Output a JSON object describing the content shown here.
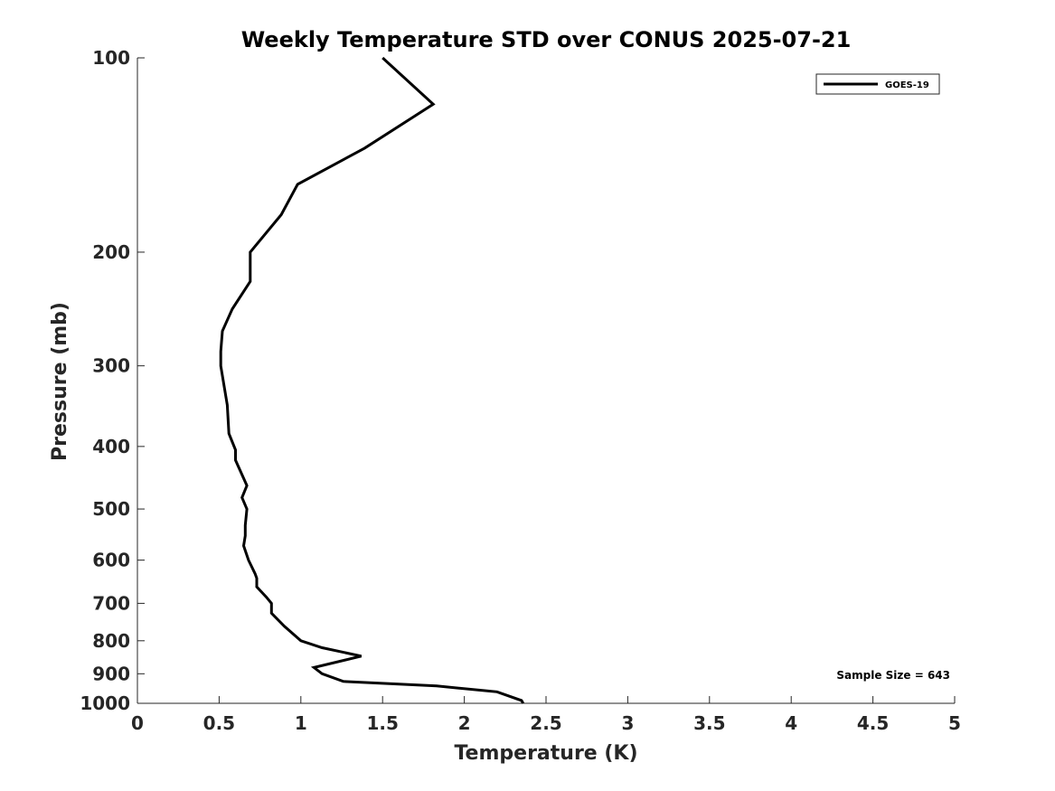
{
  "chart_data": {
    "type": "line",
    "title": "Weekly Temperature STD over CONUS 2025-07-21",
    "xlabel": "Temperature (K)",
    "ylabel": "Pressure (mb)",
    "xlim": [
      0,
      5
    ],
    "ylim": [
      100,
      1000
    ],
    "yscale": "log",
    "yreversed": true,
    "grid": false,
    "xticks": [
      0,
      0.5,
      1,
      1.5,
      2,
      2.5,
      3,
      3.5,
      4,
      4.5,
      5
    ],
    "xtick_labels": [
      "0",
      "0.5",
      "1",
      "1.5",
      "2",
      "2.5",
      "3",
      "3.5",
      "4",
      "4.5",
      "5"
    ],
    "yticks": [
      100,
      200,
      300,
      400,
      500,
      600,
      700,
      800,
      900,
      1000
    ],
    "ytick_labels": [
      "100",
      "200",
      "300",
      "400",
      "500",
      "600",
      "700",
      "800",
      "900",
      "1000"
    ],
    "legend_position": "top-right",
    "series": [
      {
        "name": "GOES-19",
        "color": "#000000",
        "x": [
          1.5,
          1.81,
          1.39,
          0.98,
          0.88,
          0.69,
          0.69,
          0.58,
          0.52,
          0.51,
          0.51,
          0.55,
          0.56,
          0.6,
          0.6,
          0.67,
          0.64,
          0.67,
          0.66,
          0.66,
          0.65,
          0.68,
          0.72,
          0.73,
          0.73,
          0.79,
          0.82,
          0.82,
          0.9,
          1.0,
          1.13,
          1.37,
          1.08,
          1.13,
          1.26,
          1.83,
          2.2,
          2.35,
          2.36
        ],
        "y": [
          100,
          118,
          138,
          157,
          175,
          200,
          222,
          245,
          265,
          285,
          300,
          345,
          382,
          405,
          420,
          460,
          480,
          500,
          530,
          550,
          570,
          600,
          630,
          640,
          660,
          685,
          700,
          725,
          760,
          800,
          820,
          845,
          880,
          900,
          925,
          940,
          960,
          990,
          1000
        ]
      }
    ],
    "annotation": "Sample Size = 643"
  }
}
